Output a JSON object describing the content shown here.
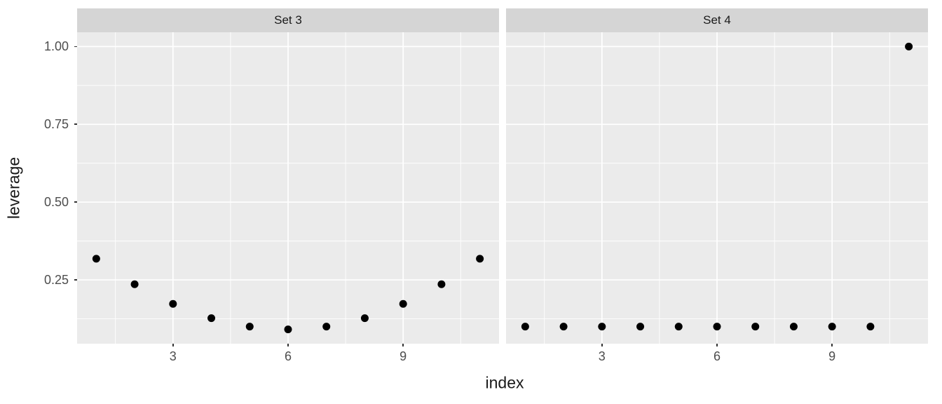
{
  "chart_data": {
    "type": "scatter",
    "title": "",
    "xlabel": "index",
    "ylabel": "leverage",
    "facets": [
      {
        "label": "Set 3",
        "x": [
          1,
          2,
          3,
          4,
          5,
          6,
          7,
          8,
          9,
          10,
          11
        ],
        "y": [
          0.318,
          0.236,
          0.173,
          0.127,
          0.1,
          0.091,
          0.1,
          0.127,
          0.173,
          0.236,
          0.318
        ]
      },
      {
        "label": "Set 4",
        "x": [
          1,
          2,
          3,
          4,
          5,
          6,
          7,
          8,
          9,
          10,
          11
        ],
        "y": [
          0.1,
          0.1,
          0.1,
          0.1,
          0.1,
          0.1,
          0.1,
          0.1,
          0.1,
          0.1,
          1.0
        ]
      }
    ],
    "xlim": [
      0.5,
      11.5
    ],
    "ylim": [
      0.045,
      1.046
    ],
    "x_ticks": {
      "values": [
        3,
        6,
        9
      ],
      "labels": [
        "3",
        "6",
        "9"
      ]
    },
    "y_ticks": {
      "values": [
        0.25,
        0.5,
        0.75,
        1.0
      ],
      "labels": [
        "0.25",
        "0.50",
        "0.75",
        "1.00"
      ]
    },
    "x_minor_breaks": [
      1.5,
      4.5,
      7.5,
      10.5
    ],
    "y_minor_breaks": [
      0.125,
      0.375,
      0.625,
      0.875
    ],
    "grid": "major+minor",
    "legend": "none",
    "point_shape": "filled-circle"
  },
  "style": {
    "background": "#FFFFFF",
    "panel_bg": "#EBEBEB",
    "strip_bg": "#D5D5D5",
    "grid_major_color": "#FFFFFF",
    "grid_minor_color": "#FFFFFF",
    "point_color": "#000000",
    "axis_text_color": "#4D4D4D",
    "axis_title_color": "#1A1A1A",
    "strip_text_color": "#1A1A1A",
    "tick_mark_color": "#333333"
  }
}
